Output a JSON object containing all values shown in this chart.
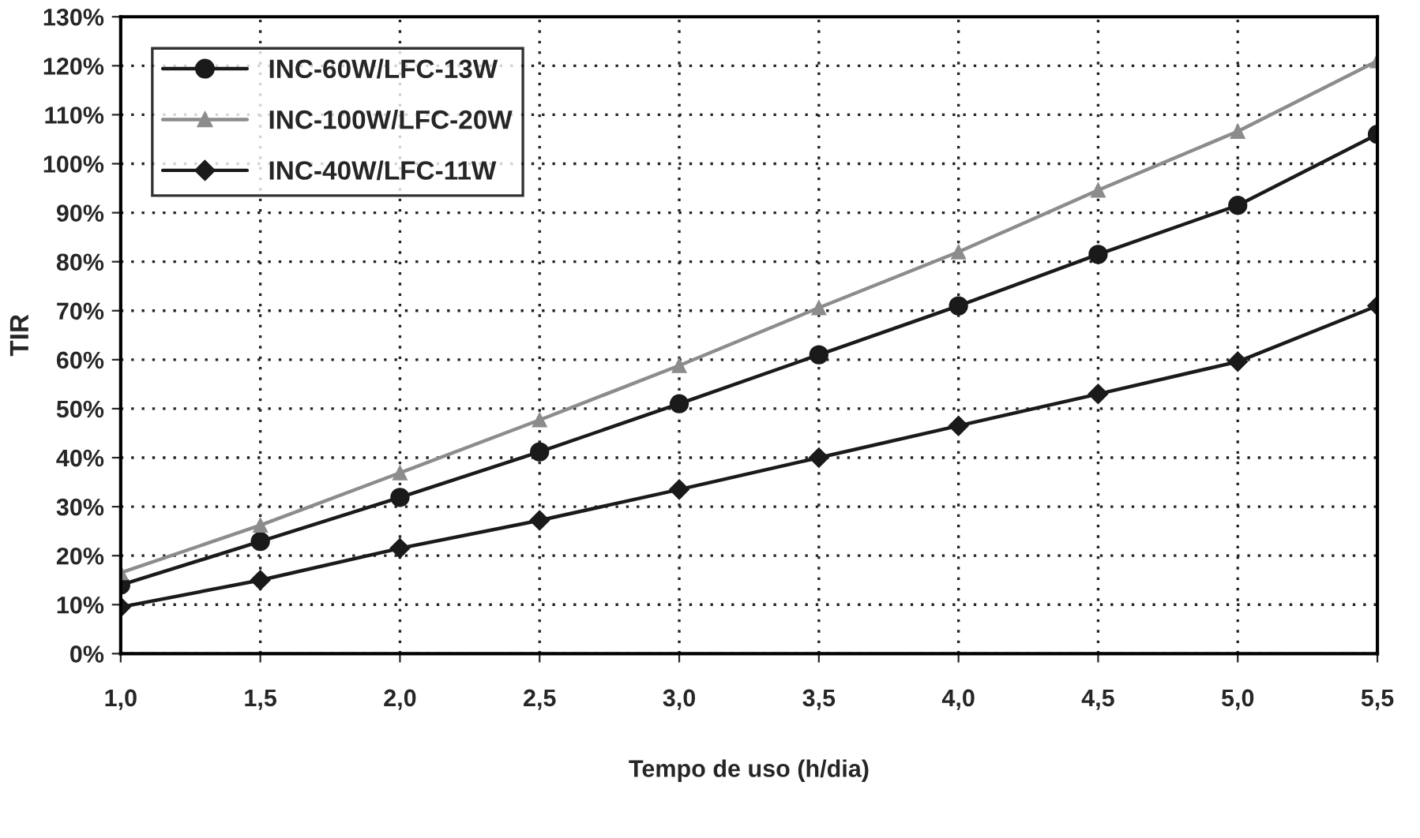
{
  "chart_data": {
    "type": "line",
    "xlabel": "Tempo de uso (h/dia)",
    "ylabel": "TIR",
    "x": [
      1.0,
      1.5,
      2.0,
      2.5,
      3.0,
      3.5,
      4.0,
      4.5,
      5.0,
      5.5
    ],
    "series": [
      {
        "name": "INC-60W/LFC-13W",
        "color": "#1a1a1a",
        "marker": "circle",
        "values": [
          14,
          22.9,
          31.9,
          41.2,
          51,
          61,
          71,
          81.5,
          91.5,
          106
        ]
      },
      {
        "name": "INC-100W/LFC-20W",
        "color": "#8c8c8c",
        "marker": "triangle",
        "values": [
          16.5,
          26.2,
          36.9,
          47.7,
          58.8,
          70.6,
          82,
          94.6,
          106.6,
          121
        ]
      },
      {
        "name": "INC-40W/LFC-11W",
        "color": "#1a1a1a",
        "marker": "diamond",
        "values": [
          9.5,
          15,
          21.5,
          27.2,
          33.5,
          40,
          46.5,
          53,
          59.6,
          71
        ]
      }
    ],
    "xlim": [
      1.0,
      5.5
    ],
    "xticks": [
      {
        "value": 1.0,
        "label": "1,0"
      },
      {
        "value": 1.5,
        "label": "1,5"
      },
      {
        "value": 2.0,
        "label": "2,0"
      },
      {
        "value": 2.5,
        "label": "2,5"
      },
      {
        "value": 3.0,
        "label": "3,0"
      },
      {
        "value": 3.5,
        "label": "3,5"
      },
      {
        "value": 4.0,
        "label": "4,0"
      },
      {
        "value": 4.5,
        "label": "4,5"
      },
      {
        "value": 5.0,
        "label": "5,0"
      },
      {
        "value": 5.5,
        "label": "5,5"
      }
    ],
    "ylim": [
      0,
      130
    ],
    "yticks": [
      {
        "value": 0,
        "label": "0%"
      },
      {
        "value": 10,
        "label": "10%"
      },
      {
        "value": 20,
        "label": "20%"
      },
      {
        "value": 30,
        "label": "30%"
      },
      {
        "value": 40,
        "label": "40%"
      },
      {
        "value": 50,
        "label": "50%"
      },
      {
        "value": 60,
        "label": "60%"
      },
      {
        "value": 70,
        "label": "70%"
      },
      {
        "value": 80,
        "label": "80%"
      },
      {
        "value": 90,
        "label": "90%"
      },
      {
        "value": 100,
        "label": "100%"
      },
      {
        "value": 110,
        "label": "110%"
      },
      {
        "value": 120,
        "label": "120%"
      },
      {
        "value": 130,
        "label": "130%"
      }
    ],
    "grid": true,
    "legend": "top left",
    "line_style": "solid"
  }
}
